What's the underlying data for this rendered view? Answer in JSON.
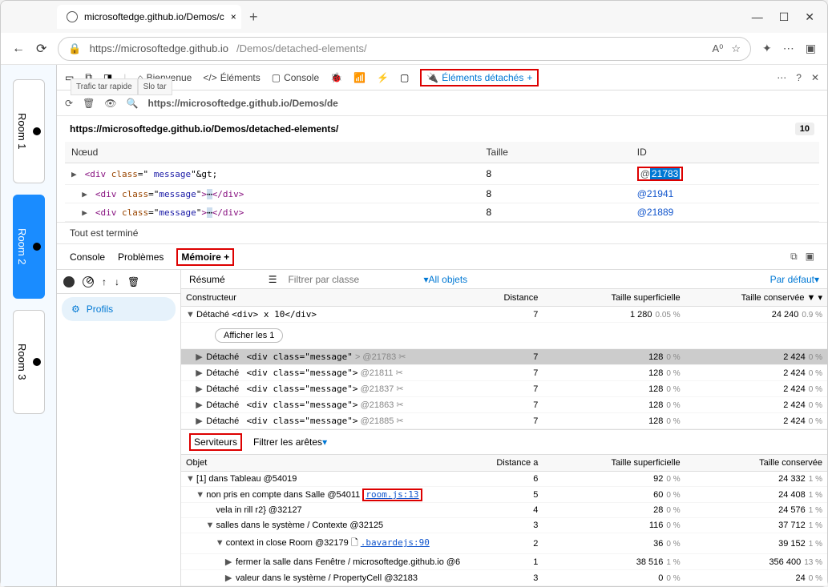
{
  "browser": {
    "tab_title": "microsoftedge.github.io/Demos/c",
    "url_host": "https://microsoftedge.github.io",
    "url_path": "/Demos/detached-elements/"
  },
  "trafic_tabs": [
    "Trafic tar rapide",
    "Slo tar"
  ],
  "rooms": [
    {
      "label": "Room 1",
      "active": false
    },
    {
      "label": "Room 2",
      "active": true
    },
    {
      "label": "Room 3",
      "active": false
    }
  ],
  "devtools_tabs": {
    "welcome": "Bienvenue",
    "elements": "Éléments",
    "console": "Console",
    "detached": "Éléments détachés",
    "plus": "+"
  },
  "filter_url": "https://microsoftedge.github.io/Demos/de",
  "page_title": "https://microsoftedge.github.io/Demos/detached-elements/",
  "badge_count": "10",
  "nodes_table": {
    "headers": {
      "node": "Nœud",
      "size": "Taille",
      "id": "ID"
    },
    "rows": [
      {
        "html": "<div class=\" message\"&gt;",
        "size": "8",
        "id": "@21783",
        "highlighted": true
      },
      {
        "html": "<div class=\"message\">…</div>",
        "size": "8",
        "id": "@21941"
      },
      {
        "html": "<div class=\"message\">…</div>",
        "size": "8",
        "id": "@21889"
      }
    ]
  },
  "status_text": "Tout est terminé",
  "lower_tabs": {
    "console": "Console",
    "problems": "Problèmes",
    "memory": "Mémoire",
    "plus": "+"
  },
  "profils_label": "Profils",
  "mem_filter": {
    "resume": "Résumé",
    "filter": "Filtrer par classe",
    "all": "All objets",
    "default": "Par défaut"
  },
  "mem_headers": {
    "constructor": "Constructeur",
    "distance": "Distance",
    "shallow": "Taille superficielle",
    "retained": "Taille conservée"
  },
  "mem_rows": [
    {
      "indent": 0,
      "caret": "▼",
      "label_pre": "Détaché ",
      "label_html": "<div> x 10</div>",
      "dist": "7",
      "shallow": "1 280",
      "shallow_pct": "0.05 %",
      "retained": "24 240",
      "retained_pct": "0.9 %"
    }
  ],
  "show_btn": "Afficher les 1",
  "mem_detail_rows": [
    {
      "indent": 1,
      "caret": "▶",
      "tag": "Détaché",
      "code": "<div class=\"message\"",
      "extra": "> @21783 ✂",
      "dist": "7",
      "shallow": "128",
      "shallow_pct": "0 %",
      "retained": "2 424",
      "retained_pct": "0 %",
      "selected": true
    },
    {
      "indent": 1,
      "caret": "▶",
      "tag": "Détaché",
      "code": "<div class=\"message\">",
      "extra": "@21811 ✂",
      "dist": "7",
      "shallow": "128",
      "shallow_pct": "0 %",
      "retained": "2 424",
      "retained_pct": "0 %"
    },
    {
      "indent": 1,
      "caret": "▶",
      "tag": "Détaché",
      "code": "<div class=\"message\">",
      "extra": "@21837 ✂",
      "dist": "7",
      "shallow": "128",
      "shallow_pct": "0 %",
      "retained": "2 424",
      "retained_pct": "0 %"
    },
    {
      "indent": 1,
      "caret": "▶",
      "tag": "Détaché",
      "code": "<div class=\"message\">",
      "extra": "@21863 ✂",
      "dist": "7",
      "shallow": "128",
      "shallow_pct": "0 %",
      "retained": "2 424",
      "retained_pct": "0 %"
    },
    {
      "indent": 1,
      "caret": "▶",
      "tag": "Détaché",
      "code": "<div class=\"message\">",
      "extra": "@21885 ✂",
      "dist": "7",
      "shallow": "128",
      "shallow_pct": "0 %",
      "retained": "2 424",
      "retained_pct": "0 %"
    }
  ],
  "serviteurs": {
    "label": "Serviteurs",
    "filter": "Filtrer les arêtes"
  },
  "serv_headers": {
    "object": "Objet",
    "distance": "Distance a",
    "shallow": "Taille superficielle",
    "retained": "Taille conservée"
  },
  "serv_rows": [
    {
      "indent": 0,
      "caret": "▼",
      "label": "[1] dans Tableau @54019",
      "dist": "6",
      "shallow": "92",
      "shallow_pct": "0 %",
      "retained": "24 332",
      "retained_pct": "1 %"
    },
    {
      "indent": 1,
      "caret": "▼",
      "label": "non pris en compte dans Salle @54011",
      "link": "room.js:13",
      "link_hl": true,
      "dist": "5",
      "shallow": "60",
      "shallow_pct": "0 %",
      "retained": "24 408",
      "retained_pct": "1 %"
    },
    {
      "indent": 2,
      "caret": "",
      "label": "vela in rill r2} @32127",
      "dist": "4",
      "shallow": "28",
      "shallow_pct": "0 %",
      "retained": "24 576",
      "retained_pct": "1 %"
    },
    {
      "indent": 2,
      "caret": "▼",
      "label": "salles dans le système /    Contexte @32125",
      "dist": "3",
      "shallow": "116",
      "shallow_pct": "0 %",
      "retained": "37 712",
      "retained_pct": "1 %"
    },
    {
      "indent": 3,
      "caret": "▼",
      "label": "context in close Room @32179        🗋",
      "link": ".bavardejs:90",
      "dist": "2",
      "shallow": "36",
      "shallow_pct": "0 %",
      "retained": "39 152",
      "retained_pct": "1 %"
    },
    {
      "indent": 4,
      "caret": "▶",
      "label": "fermer la salle dans  Fenêtre / microsoftedge.github.io @6",
      "dist": "1",
      "shallow": "38 516",
      "shallow_pct": "1 %",
      "retained": "356 400",
      "retained_pct": "13 %"
    },
    {
      "indent": 4,
      "caret": "▶",
      "label": "valeur dans le système /    PropertyCell @32183",
      "dist": "3",
      "shallow": "0",
      "shallow_pct": "0 %",
      "retained": "24",
      "retained_pct": "0 %"
    }
  ],
  "colors": {
    "highlight_red": "#d00",
    "selection_blue": "#0078d4",
    "room_active": "#1a8cff",
    "link": "#1155cc"
  }
}
